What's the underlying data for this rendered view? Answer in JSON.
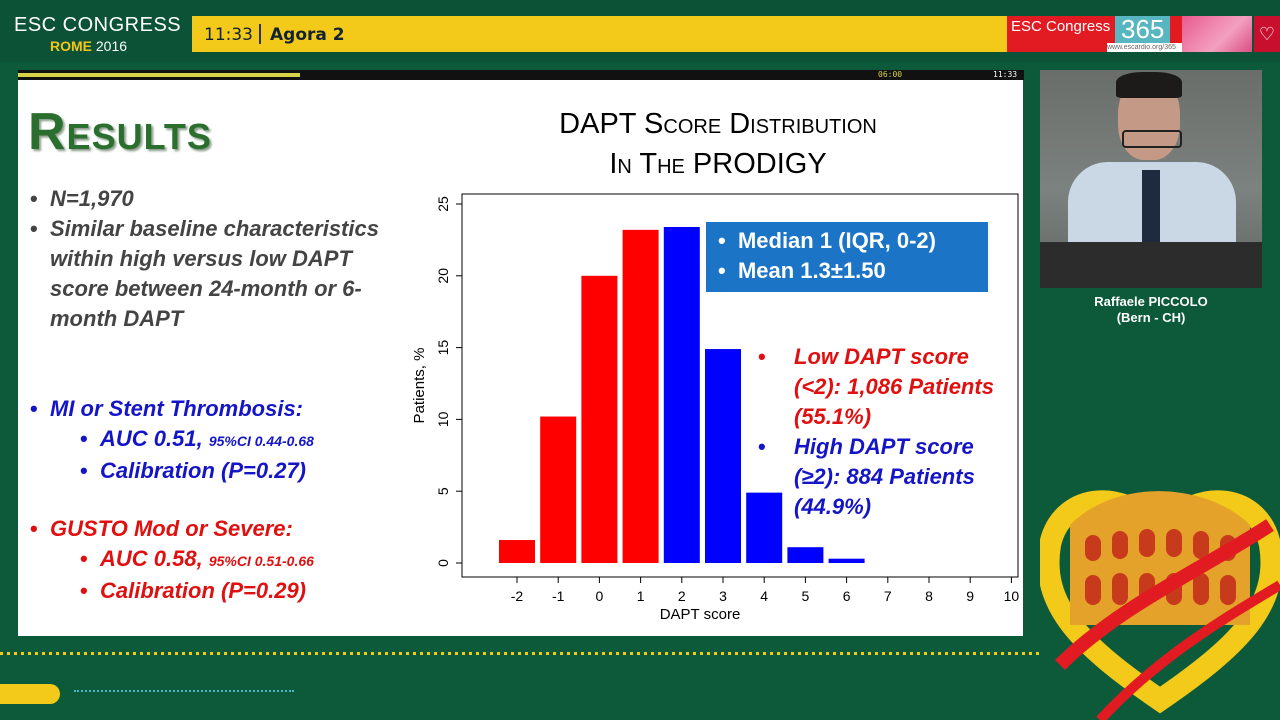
{
  "header": {
    "logo_line1": "ESC CONGRESS",
    "logo_city": "ROME",
    "logo_year": "2016",
    "time": "11:33",
    "room": "Agora 2",
    "brand_text": "ESC Congress",
    "brand_number": "365",
    "brand_url": "www.escardio.org/365"
  },
  "progress": {
    "start_label": "06:00",
    "end_label": "11:33",
    "fraction": 0.28
  },
  "slide": {
    "title": "Results",
    "bullets_top": [
      "N=1,970",
      "Similar baseline characteristics within high versus low DAPT score between 24-month or 6-month DAPT"
    ],
    "mi_heading": "MI or Stent Thrombosis:",
    "mi_auc": "AUC 0.51,",
    "mi_ci": "95%CI 0.44-0.68",
    "mi_cal": "Calibration (P=0.27)",
    "gusto_heading": "GUSTO Mod or Severe:",
    "gusto_auc": "AUC 0.58,",
    "gusto_ci": "95%CI 0.51-0.66",
    "gusto_cal": "Calibration (P=0.29)",
    "chart_title_line1": "DAPT Score Distribution",
    "chart_title_line2": "In The PRODIGY",
    "stats": [
      "Median 1 (IQR, 0-2)",
      "Mean 1.3±1.50"
    ],
    "legend_low": "Low DAPT score (<2): 1,086 Patients (55.1%)",
    "legend_high": "High DAPT score (≥2): 884 Patients (44.9%)"
  },
  "chart_data": {
    "type": "bar",
    "categories": [
      "-2",
      "-1",
      "0",
      "1",
      "2",
      "3",
      "4",
      "5",
      "6",
      "7",
      "8",
      "9",
      "10"
    ],
    "values": [
      1.6,
      10.2,
      20.0,
      23.2,
      23.4,
      14.9,
      4.9,
      1.1,
      0.3,
      0,
      0,
      0,
      0
    ],
    "bar_colors": [
      "#ff0000",
      "#ff0000",
      "#ff0000",
      "#ff0000",
      "#0000ff",
      "#0000ff",
      "#0000ff",
      "#0000ff",
      "#0000ff",
      "#0000ff",
      "#0000ff",
      "#0000ff",
      "#0000ff"
    ],
    "xlabel": "DAPT score",
    "ylabel": "Patients, %",
    "ylim": [
      0,
      25
    ],
    "yticks": [
      "0",
      "5",
      "10",
      "15",
      "20",
      "25"
    ],
    "grid": false
  },
  "speaker": {
    "name": "Raffaele PICCOLO",
    "affiliation": "(Bern - CH)"
  },
  "colors": {
    "background": "#0d5a3a",
    "title_green": "#2b6f2f",
    "low_red": "#ff0000",
    "high_blue": "#0000ff",
    "statbox": "#1c74c7",
    "accent_yellow": "#f3c91a"
  }
}
